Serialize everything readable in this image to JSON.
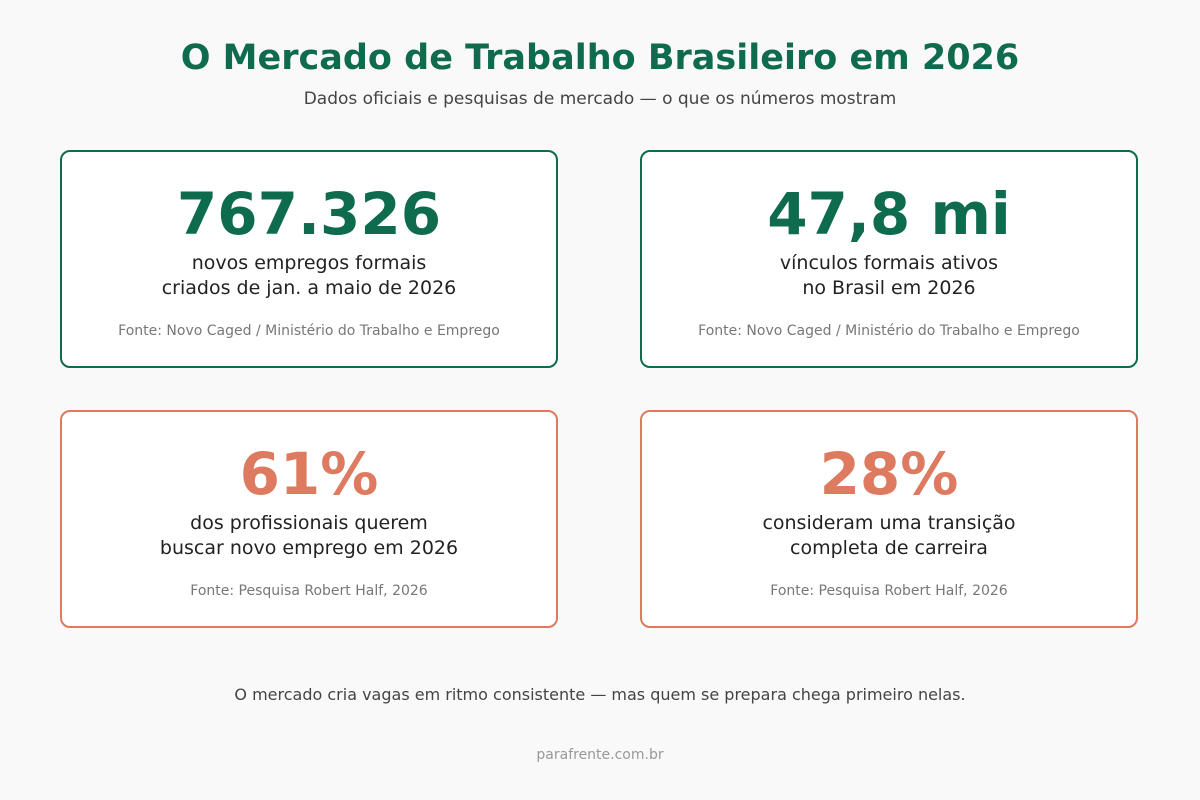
{
  "header": {
    "title": "O Mercado de Trabalho Brasileiro em 2026",
    "subtitle": "Dados oficiais e pesquisas de mercado — o que os números mostram"
  },
  "colors": {
    "green": "#0e6b4e",
    "orange": "#dd7a5f",
    "background": "#f9f9f9"
  },
  "cards": [
    {
      "value": "767.326",
      "line1": "novos empregos formais",
      "line2": "criados de jan. a maio de 2026",
      "source": "Fonte: Novo Caged / Ministério do Trabalho e Emprego"
    },
    {
      "value": "47,8 mi",
      "line1": "vínculos formais ativos",
      "line2": "no Brasil em 2026",
      "source": "Fonte: Novo Caged / Ministério do Trabalho e Emprego"
    },
    {
      "value": "61%",
      "line1": "dos profissionais querem",
      "line2": "buscar novo emprego em 2026",
      "source": "Fonte: Pesquisa Robert Half, 2026"
    },
    {
      "value": "28%",
      "line1": "consideram uma transição",
      "line2": "completa de carreira",
      "source": "Fonte: Pesquisa Robert Half, 2026"
    }
  ],
  "footer": {
    "text": "O mercado cria vagas em ritmo consistente — mas quem se prepara chega primeiro nelas.",
    "site": "parafrente.com.br"
  }
}
